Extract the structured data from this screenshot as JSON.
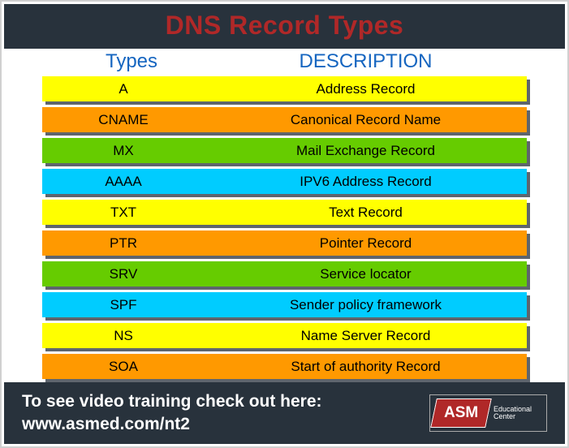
{
  "title": "DNS Record Types",
  "columns": {
    "types_label": "Types",
    "desc_label": "DESCRIPTION"
  },
  "header_colors": {
    "types": "#1565c0",
    "desc": "#1565c0"
  },
  "row_colors": {
    "yellow": "#ffff00",
    "orange": "#ff9900",
    "green": "#66cc00",
    "cyan": "#00ccff"
  },
  "rows": [
    {
      "type": "A",
      "desc": "Address Record",
      "color": "yellow"
    },
    {
      "type": "CNAME",
      "desc": "Canonical Record Name",
      "color": "orange"
    },
    {
      "type": "MX",
      "desc": "Mail Exchange Record",
      "color": "green"
    },
    {
      "type": "AAAA",
      "desc": "IPV6 Address Record",
      "color": "cyan"
    },
    {
      "type": "TXT",
      "desc": "Text Record",
      "color": "yellow"
    },
    {
      "type": "PTR",
      "desc": "Pointer Record",
      "color": "orange"
    },
    {
      "type": "SRV",
      "desc": "Service locator",
      "color": "green"
    },
    {
      "type": "SPF",
      "desc": "Sender policy framework",
      "color": "cyan"
    },
    {
      "type": "NS",
      "desc": "Name Server Record",
      "color": "yellow"
    },
    {
      "type": "SOA",
      "desc": "Start of authority Record",
      "color": "orange"
    }
  ],
  "footer": {
    "line1": "To see video training check out here:",
    "line2": "www.asmed.com/nt2"
  },
  "logo": {
    "brand": "ASM",
    "sub1": "Educational",
    "sub2": "Center"
  }
}
